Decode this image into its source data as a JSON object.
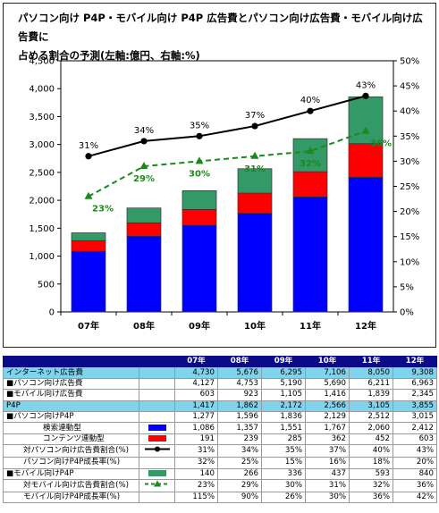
{
  "title": "パソコン向け P4P・モバイル向け P4P 広告費とパソコン向け広告費・モバイル向け広告費に\n占める割合の予測(左軸:億円、右軸:%)",
  "chart_data": {
    "type": "bar",
    "stacked": true,
    "categories": [
      "07年",
      "08年",
      "09年",
      "10年",
      "11年",
      "12年"
    ],
    "y_left_ticks": [
      "0",
      "500",
      "1,000",
      "1,500",
      "2,000",
      "2,500",
      "3,000",
      "3,500",
      "4,000",
      "4,500"
    ],
    "y_right_ticks": [
      "0%",
      "5%",
      "10%",
      "15%",
      "20%",
      "25%",
      "30%",
      "35%",
      "40%",
      "45%",
      "50%"
    ],
    "ylim_left": [
      0,
      4500
    ],
    "ylim_right": [
      0,
      50
    ],
    "grid": false,
    "series": [
      {
        "kind": "bar",
        "color": "#0000ff",
        "values": [
          1086,
          1357,
          1551,
          1767,
          2060,
          2412
        ]
      },
      {
        "kind": "bar",
        "color": "#ff0000",
        "values": [
          191,
          239,
          285,
          362,
          452,
          603
        ]
      },
      {
        "kind": "bar",
        "color": "#339966",
        "values": [
          140,
          266,
          336,
          437,
          593,
          840
        ]
      },
      {
        "kind": "line",
        "color": "#000000",
        "dash": false,
        "values": [
          31,
          34,
          35,
          37,
          40,
          43
        ],
        "labels": [
          "31%",
          "34%",
          "35%",
          "37%",
          "40%",
          "43%"
        ],
        "label_color": "#000000"
      },
      {
        "kind": "line",
        "color": "#1a8a1a",
        "dash": true,
        "values": [
          23,
          29,
          30,
          31,
          32,
          36
        ],
        "labels": [
          "23%",
          "29%",
          "30%",
          "31%",
          "32%",
          "36%"
        ],
        "label_color": "#1a8a1a"
      }
    ]
  },
  "table": {
    "years": [
      "07年",
      "08年",
      "09年",
      "10年",
      "11年",
      "12年"
    ],
    "rows": [
      {
        "label": "インターネット広告費",
        "values": [
          "4,730",
          "5,676",
          "6,295",
          "7,106",
          "8,050",
          "9,308"
        ],
        "style": "hl",
        "legend": ""
      },
      {
        "label": "■パソコン向け広告費",
        "values": [
          "4,127",
          "4,753",
          "5,190",
          "5,690",
          "6,211",
          "6,963"
        ],
        "style": "",
        "legend": ""
      },
      {
        "label": "■モバイル向け広告費",
        "values": [
          "603",
          "923",
          "1,105",
          "1,416",
          "1,839",
          "2,345"
        ],
        "style": "",
        "legend": ""
      },
      {
        "label": "P4P",
        "values": [
          "1,417",
          "1,862",
          "2,172",
          "2,566",
          "3,105",
          "3,855"
        ],
        "style": "hl",
        "legend": ""
      },
      {
        "label": "■パソコン向けP4P",
        "values": [
          "1,277",
          "1,596",
          "1,836",
          "2,129",
          "2,512",
          "3,015"
        ],
        "style": "",
        "legend": ""
      },
      {
        "label": "検索連動型",
        "values": [
          "1,086",
          "1,357",
          "1,551",
          "1,767",
          "2,060",
          "2,412"
        ],
        "style": "ind2",
        "legend": "blue"
      },
      {
        "label": "コンテンツ連動型",
        "values": [
          "191",
          "239",
          "285",
          "362",
          "452",
          "603"
        ],
        "style": "ind2",
        "legend": "red"
      },
      {
        "label": "対パソコン向け広告費割合(%)",
        "values": [
          "31%",
          "34%",
          "35%",
          "37%",
          "40%",
          "43%"
        ],
        "style": "ind1",
        "legend": "blackline"
      },
      {
        "label": "パソコン向けP4P成長率(%)",
        "values": [
          "32%",
          "25%",
          "15%",
          "16%",
          "18%",
          "20%"
        ],
        "style": "ind1",
        "legend": ""
      },
      {
        "label": "■モバイル向けP4P",
        "values": [
          "140",
          "266",
          "336",
          "437",
          "593",
          "840"
        ],
        "style": "",
        "legend": "green"
      },
      {
        "label": "対モバイル向け広告費割合(%)",
        "values": [
          "23%",
          "29%",
          "30%",
          "31%",
          "32%",
          "36%"
        ],
        "style": "ind1",
        "legend": "greenline"
      },
      {
        "label": "モバイル向けP4P成長率(%)",
        "values": [
          "115%",
          "90%",
          "26%",
          "30%",
          "36%",
          "42%"
        ],
        "style": "ind1",
        "legend": ""
      }
    ]
  }
}
